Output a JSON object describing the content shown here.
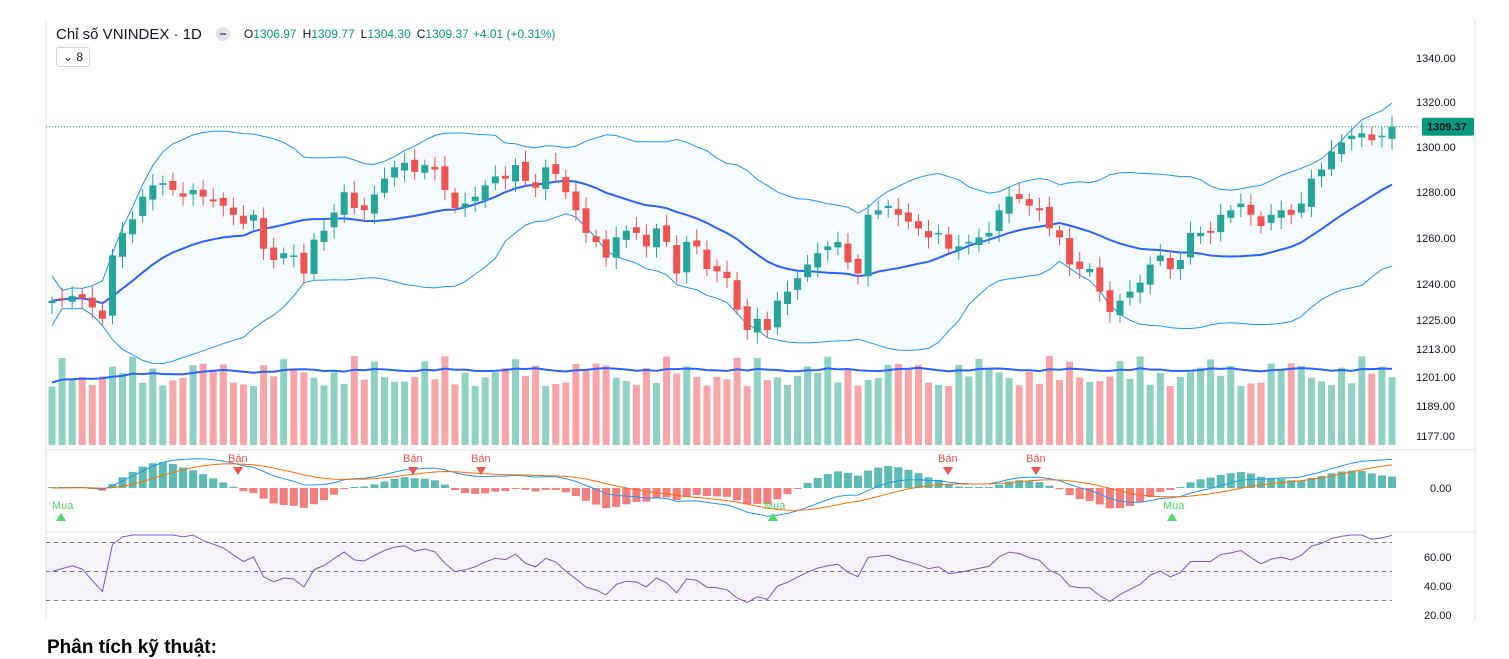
{
  "header": {
    "symbol_label": "Chỉ số VNINDEX · 1D",
    "ohlc": [
      {
        "key": "O",
        "value": "1306.97"
      },
      {
        "key": "H",
        "value": "1309.77"
      },
      {
        "key": "L",
        "value": "1304.30"
      },
      {
        "key": "C",
        "value": "1309.37"
      }
    ],
    "change": "+4.01 (+0.31%)",
    "collapse_label": "⌄ 8"
  },
  "heading": "Phân tích kỹ thuật:",
  "colors": {
    "up": "#26a69a",
    "down": "#ef5350",
    "up_vol": "#8fd1c3",
    "down_vol": "#f7a5a9",
    "band": "#2196f3",
    "basis": "#2962ff",
    "macd": "#2196f3",
    "signal": "#ff6d00",
    "rsi": "#7e57c2",
    "buy": "#4cd964",
    "sell": "#ef5350",
    "last_price_label": "#089981"
  },
  "chart_data": {
    "type": "candlestick",
    "price_axis": {
      "ticks": [
        "1340.00",
        "1320.00",
        "1300.00",
        "1280.00",
        "1260.00",
        "1240.00",
        "1225.00",
        "1213.00",
        "1201.00",
        "1189.00",
        "1177.00"
      ],
      "last_price": "1309.37"
    },
    "macd_axis": {
      "ticks": [
        "0.00"
      ]
    },
    "rsi_axis": {
      "ticks": [
        "60.00",
        "40.00",
        "20.00"
      ],
      "band": [
        30,
        70
      ]
    },
    "closes": [
      1232,
      1233,
      1234,
      1233,
      1229,
      1224,
      1252,
      1262,
      1268,
      1278,
      1283,
      1284,
      1281,
      1278,
      1281,
      1278,
      1276,
      1274,
      1270,
      1266,
      1270,
      1255,
      1250,
      1253,
      1252,
      1244,
      1259,
      1263,
      1271,
      1280,
      1273,
      1272,
      1279,
      1286,
      1291,
      1293,
      1289,
      1292,
      1290,
      1281,
      1273,
      1275,
      1278,
      1283,
      1287,
      1286,
      1292,
      1285,
      1282,
      1291,
      1288,
      1280,
      1272,
      1262,
      1258,
      1251,
      1260,
      1263,
      1262,
      1256,
      1264,
      1258,
      1244,
      1258,
      1256,
      1246,
      1245,
      1242,
      1228,
      1219,
      1224,
      1219,
      1232,
      1236,
      1242,
      1248,
      1253,
      1256,
      1258,
      1249,
      1244,
      1270,
      1272,
      1274,
      1270,
      1267,
      1264,
      1260,
      1262,
      1255,
      1256,
      1258,
      1260,
      1262,
      1272,
      1278,
      1277,
      1274,
      1272,
      1264,
      1260,
      1248,
      1246,
      1246,
      1236,
      1227,
      1232,
      1236,
      1240,
      1248,
      1252,
      1246,
      1250,
      1262,
      1262,
      1262,
      1270,
      1272,
      1275,
      1270,
      1265,
      1270,
      1272,
      1270,
      1275,
      1286,
      1290,
      1298,
      1302,
      1305,
      1306,
      1303,
      1305,
      1309
    ],
    "volumes_note": "volume bars, colored by candle direction",
    "signals": [
      {
        "label": "Mua",
        "type": "buy"
      },
      {
        "label": "Bán",
        "type": "sell"
      },
      {
        "label": "Bán",
        "type": "sell"
      },
      {
        "label": "Bán",
        "type": "sell"
      },
      {
        "label": "Mua",
        "type": "buy"
      },
      {
        "label": "Bán",
        "type": "sell"
      },
      {
        "label": "Bán",
        "type": "sell"
      },
      {
        "label": "Mua",
        "type": "buy"
      }
    ]
  }
}
